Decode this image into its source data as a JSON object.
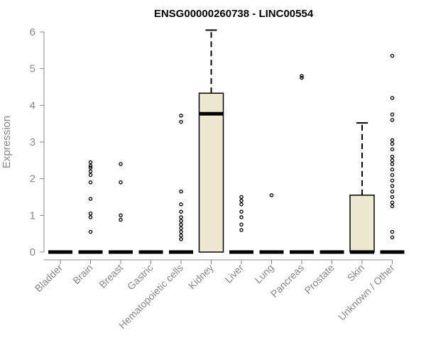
{
  "chart_data": {
    "type": "box",
    "title": "ENSG00000260738 - LINC00554",
    "ylabel": "Expression",
    "xlabel": "",
    "ylim": [
      0,
      6
    ],
    "yticks": [
      0,
      1,
      2,
      3,
      4,
      5,
      6
    ],
    "box_fill": "#ede8cf",
    "categories": [
      "Bladder",
      "Brain",
      "Breast",
      "Gastric",
      "Hematopoietic cells",
      "Kidney",
      "Liver",
      "Lung",
      "Pancreas",
      "Prostate",
      "Skin",
      "Unknown / Other"
    ],
    "boxes": [
      {
        "category": "Bladder",
        "q1": 0,
        "median": 0,
        "q3": 0,
        "whisker_low": 0,
        "whisker_high": 0,
        "outliers": []
      },
      {
        "category": "Brain",
        "q1": 0,
        "median": 0,
        "q3": 0,
        "whisker_low": 0,
        "whisker_high": 0,
        "outliers": [
          0.55,
          0.95,
          1.05,
          1.45,
          1.9,
          2.1,
          2.2,
          2.3,
          2.35,
          2.45
        ]
      },
      {
        "category": "Breast",
        "q1": 0,
        "median": 0,
        "q3": 0,
        "whisker_low": 0,
        "whisker_high": 0,
        "outliers": [
          0.88,
          1.0,
          1.9,
          2.4
        ]
      },
      {
        "category": "Gastric",
        "q1": 0,
        "median": 0,
        "q3": 0,
        "whisker_low": 0,
        "whisker_high": 0,
        "outliers": []
      },
      {
        "category": "Hematopoietic cells",
        "q1": 0,
        "median": 0,
        "q3": 0,
        "whisker_low": 0,
        "whisker_high": 0,
        "outliers": [
          0.35,
          0.45,
          0.55,
          0.65,
          0.75,
          0.85,
          0.95,
          1.1,
          1.3,
          1.65,
          3.55,
          3.72
        ]
      },
      {
        "category": "Kidney",
        "q1": 0,
        "median": 3.77,
        "q3": 4.33,
        "whisker_low": 0,
        "whisker_high": 6.05,
        "outliers": []
      },
      {
        "category": "Liver",
        "q1": 0,
        "median": 0,
        "q3": 0,
        "whisker_low": 0,
        "whisker_high": 0,
        "outliers": [
          0.6,
          0.75,
          0.95,
          1.1,
          1.3,
          1.4,
          1.5
        ]
      },
      {
        "category": "Lung",
        "q1": 0,
        "median": 0,
        "q3": 0,
        "whisker_low": 0,
        "whisker_high": 0,
        "outliers": [
          1.55
        ]
      },
      {
        "category": "Pancreas",
        "q1": 0,
        "median": 0,
        "q3": 0,
        "whisker_low": 0,
        "whisker_high": 0,
        "outliers": [
          4.75,
          4.8
        ]
      },
      {
        "category": "Prostate",
        "q1": 0,
        "median": 0,
        "q3": 0,
        "whisker_low": 0,
        "whisker_high": 0,
        "outliers": []
      },
      {
        "category": "Skin",
        "q1": 0,
        "median": 0,
        "q3": 1.55,
        "whisker_low": 0,
        "whisker_high": 3.52,
        "outliers": []
      },
      {
        "category": "Unknown / Other",
        "q1": 0,
        "median": 0,
        "q3": 0,
        "whisker_low": 0,
        "whisker_high": 0,
        "outliers": [
          0.4,
          0.55,
          1.25,
          1.35,
          1.5,
          1.65,
          1.8,
          1.95,
          2.1,
          2.25,
          2.4,
          2.5,
          2.6,
          2.8,
          2.95,
          3.05,
          3.6,
          3.75,
          4.2,
          5.35
        ]
      }
    ]
  }
}
